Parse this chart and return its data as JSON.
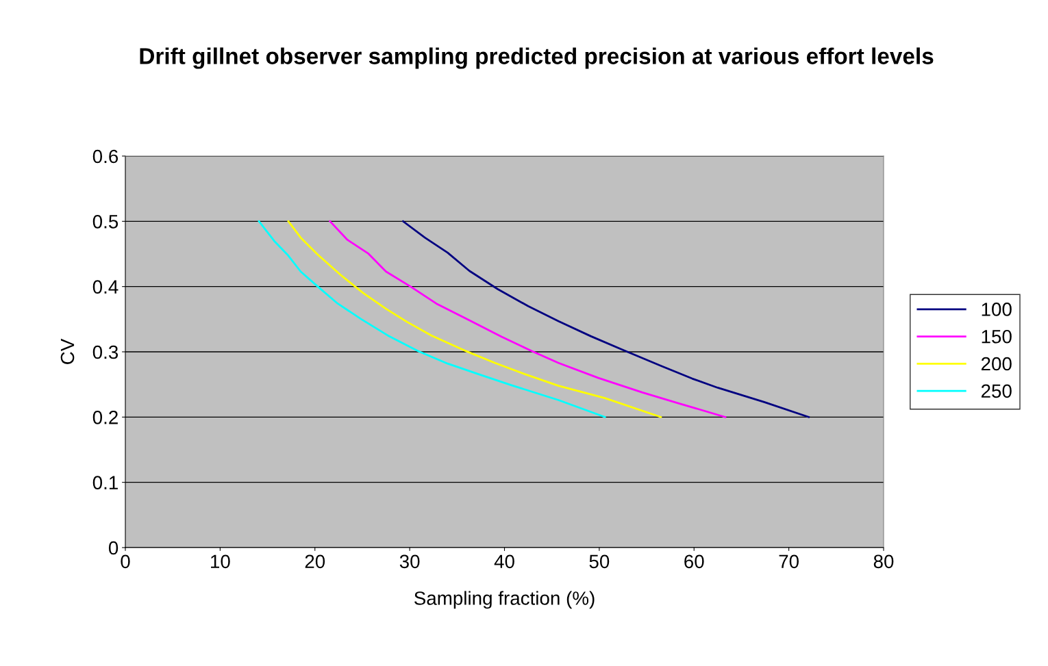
{
  "chart_data": {
    "type": "line",
    "title": "Drift gillnet observer sampling predicted precision at various effort levels",
    "xlabel": "Sampling fraction (%)",
    "ylabel": "CV",
    "xlim": [
      0,
      80
    ],
    "xticks": [
      0,
      10,
      20,
      30,
      40,
      50,
      60,
      70,
      80
    ],
    "ylim": [
      0,
      0.6
    ],
    "yticks": [
      0,
      0.1,
      0.2,
      0.3,
      0.4,
      0.5,
      0.6
    ],
    "grid": "y",
    "legend": "right",
    "marker": "none",
    "line_style": "solid",
    "series": [
      {
        "name": "100",
        "color": "#000080",
        "x": [
          29.3,
          31.6,
          34.0,
          36.3,
          39.3,
          42.5,
          45.7,
          49.1,
          52.8,
          56.6,
          59.8,
          62.5,
          67.4,
          72.1
        ],
        "values": [
          0.5,
          0.475,
          0.452,
          0.424,
          0.396,
          0.37,
          0.347,
          0.324,
          0.301,
          0.278,
          0.259,
          0.245,
          0.223,
          0.2
        ]
      },
      {
        "name": "150",
        "color": "#ff00ff",
        "x": [
          21.6,
          23.4,
          25.6,
          27.5,
          30.2,
          32.8,
          36.2,
          39.7,
          42.9,
          45.7,
          49.9,
          54.5,
          58.4,
          63.3
        ],
        "values": [
          0.5,
          0.472,
          0.451,
          0.423,
          0.399,
          0.374,
          0.349,
          0.323,
          0.301,
          0.283,
          0.26,
          0.238,
          0.221,
          0.2
        ]
      },
      {
        "name": "200",
        "color": "#ffff00",
        "x": [
          17.2,
          18.5,
          20.3,
          22.7,
          25.1,
          27.5,
          29.7,
          32.3,
          35.8,
          39.0,
          42.1,
          45.7,
          50.6,
          56.5
        ],
        "values": [
          0.5,
          0.475,
          0.449,
          0.418,
          0.39,
          0.366,
          0.346,
          0.325,
          0.302,
          0.283,
          0.266,
          0.248,
          0.229,
          0.2
        ]
      },
      {
        "name": "250",
        "color": "#00ffff",
        "x": [
          14.1,
          15.7,
          17.1,
          18.5,
          20.3,
          22.4,
          24.9,
          27.7,
          30.9,
          34.0,
          37.2,
          40.7,
          45.7,
          50.6
        ],
        "values": [
          0.5,
          0.47,
          0.449,
          0.423,
          0.4,
          0.374,
          0.35,
          0.325,
          0.301,
          0.282,
          0.266,
          0.249,
          0.226,
          0.2
        ]
      }
    ]
  }
}
